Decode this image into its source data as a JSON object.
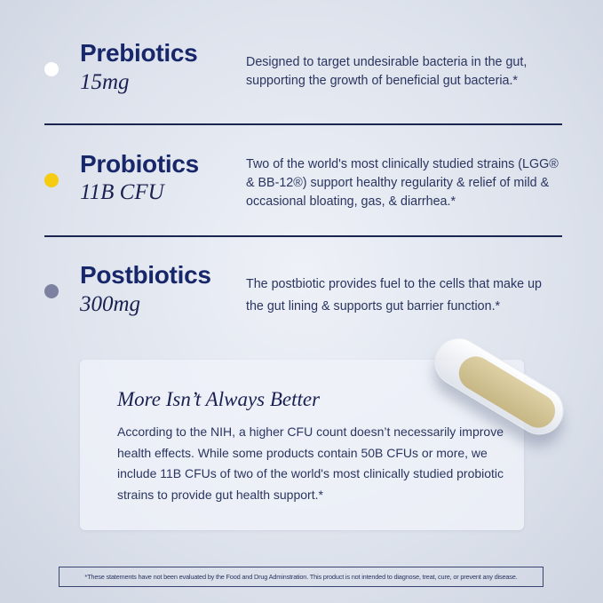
{
  "items": [
    {
      "title": "Prebiotics",
      "amount": "15mg",
      "description": "Designed to target undesirable bacteria in the gut, supporting the growth of beneficial gut bacteria.*",
      "dot_color": "#ffffff"
    },
    {
      "title": "Probiotics",
      "amount": "11B CFU",
      "description": "Two of the world's most clinically studied strains (LGG® & BB-12®) support healthy regularity & relief of mild & occasional bloating, gas, & diarrhea.*",
      "dot_color": "#f5cc12"
    },
    {
      "title": "Postbiotics",
      "amount": "300mg",
      "description": "The postbiotic provides fuel to the cells that make up the gut lining & supports gut barrier function.*",
      "dot_color": "#7c81a0"
    }
  ],
  "card": {
    "title": "More Isn’t Always Better",
    "body": "According to the NIH, a higher CFU count doesn’t necessarily improve health effects. While some products contain 50B CFUs or more, we include 11B CFUs of two of the world's most clinically studied probiotic strains to provide gut health support.*"
  },
  "disclaimer": "*These statements have not been evaluated by the Food and Drug Adminstration. This product is not intended to diagnose, treat, cure, or prevent any disease."
}
